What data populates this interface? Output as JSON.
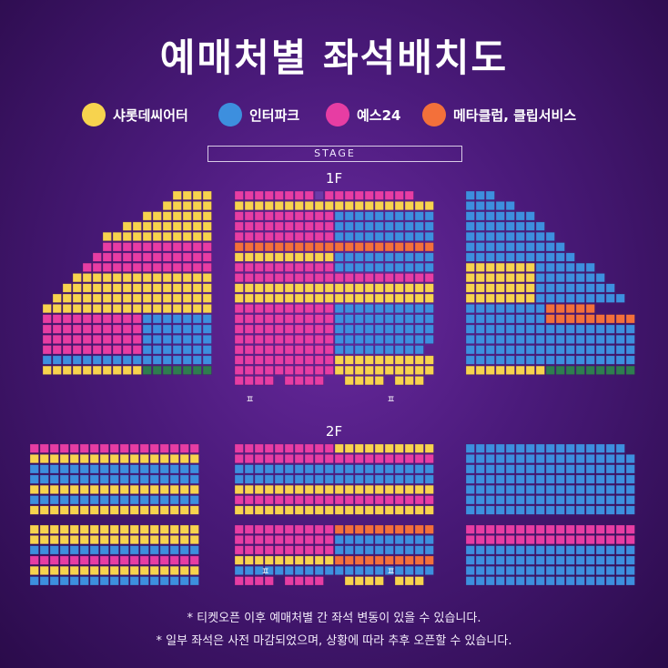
{
  "title": "예매처별 좌석배치도",
  "legend": [
    {
      "label": "샤롯데씨어터",
      "color": "#f7d34e",
      "icon": "yellow-circle"
    },
    {
      "label": "인터파크",
      "color": "#3d8fde",
      "icon": "blue-circle"
    },
    {
      "label": "예스24",
      "color": "#e73da3",
      "icon": "pink-circle"
    },
    {
      "label": "메타클럽, 클립서비스",
      "color": "#f3703a",
      "icon": "orange-circle"
    }
  ],
  "colors": {
    "background": "#4a1a7a",
    "seat_empty": "#6b3aa8",
    "seat_green": "#2e7d4f"
  },
  "stage": {
    "label": "STAGE"
  },
  "floors": {
    "first": "1F",
    "second": "2F"
  },
  "markers": {
    "wheelchair": "ㅍ"
  },
  "notes": [
    "* 티켓오픈 이후 예매처별 간 좌석 변동이 있을 수 있습니다.",
    "* 일부 좌석은 사전 마감되었으며, 상황에 따라 추후 오픈할 수 있습니다."
  ]
}
